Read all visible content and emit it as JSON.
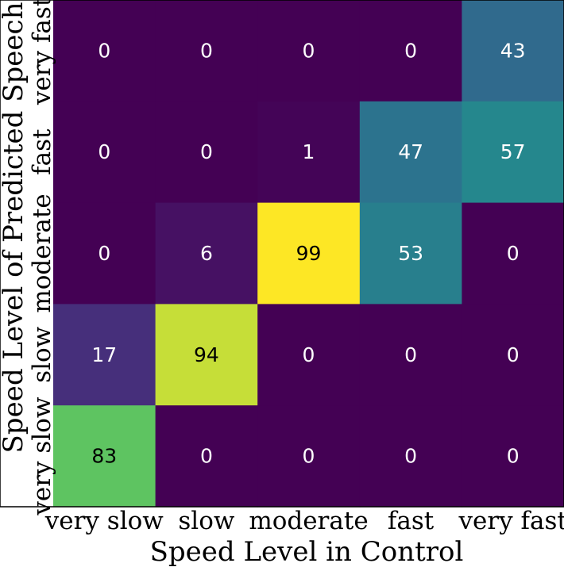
{
  "chart_data": {
    "type": "heatmap",
    "title": "",
    "xlabel": "Speed Level in Control",
    "ylabel": "Speed Level of Predicted Speech",
    "x_categories": [
      "very slow",
      "slow",
      "moderate",
      "fast",
      "very fast"
    ],
    "y_categories": [
      "very slow",
      "slow",
      "moderate",
      "fast",
      "very fast"
    ],
    "rows": [
      {
        "y": "very fast",
        "values": [
          0,
          0,
          0,
          0,
          43
        ]
      },
      {
        "y": "fast",
        "values": [
          0,
          0,
          1,
          47,
          57
        ]
      },
      {
        "y": "moderate",
        "values": [
          0,
          6,
          99,
          53,
          0
        ]
      },
      {
        "y": "slow",
        "values": [
          17,
          94,
          0,
          0,
          0
        ]
      },
      {
        "y": "very slow",
        "values": [
          83,
          0,
          0,
          0,
          0
        ]
      }
    ],
    "value_range": [
      0,
      99
    ],
    "colormap": "viridis",
    "grid": false,
    "colorbar": false
  }
}
